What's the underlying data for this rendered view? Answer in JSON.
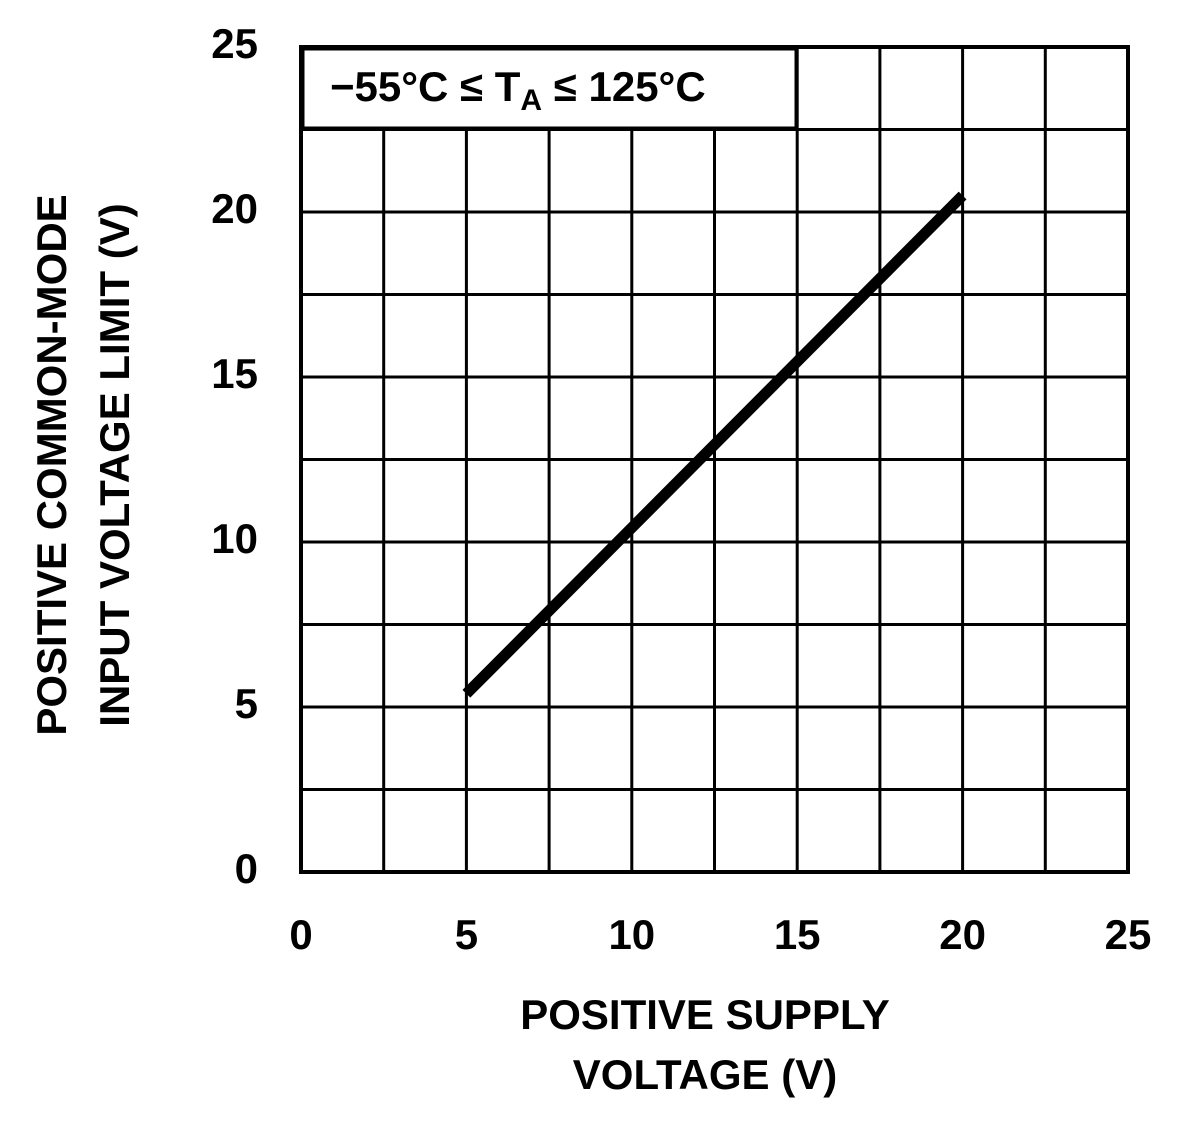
{
  "chart_data": {
    "type": "line",
    "annotation_parts": [
      "−55°C ≤ T",
      "A",
      " ≤ 125°C"
    ],
    "x_label": [
      "POSITIVE SUPPLY",
      "VOLTAGE (V)"
    ],
    "y_label": [
      "POSITIVE COMMON-MODE",
      "INPUT VOLTAGE LIMIT (V)"
    ],
    "x": [
      5,
      20
    ],
    "series": [
      {
        "color": "#000000",
        "values": [
          5.4,
          20.5
        ]
      }
    ],
    "xlim": [
      0,
      25
    ],
    "xticks": [
      0,
      5,
      10,
      15,
      20,
      25
    ],
    "ylim": [
      0,
      25
    ],
    "yticks": [
      0,
      5,
      10,
      15,
      20,
      25
    ],
    "grid": true
  }
}
